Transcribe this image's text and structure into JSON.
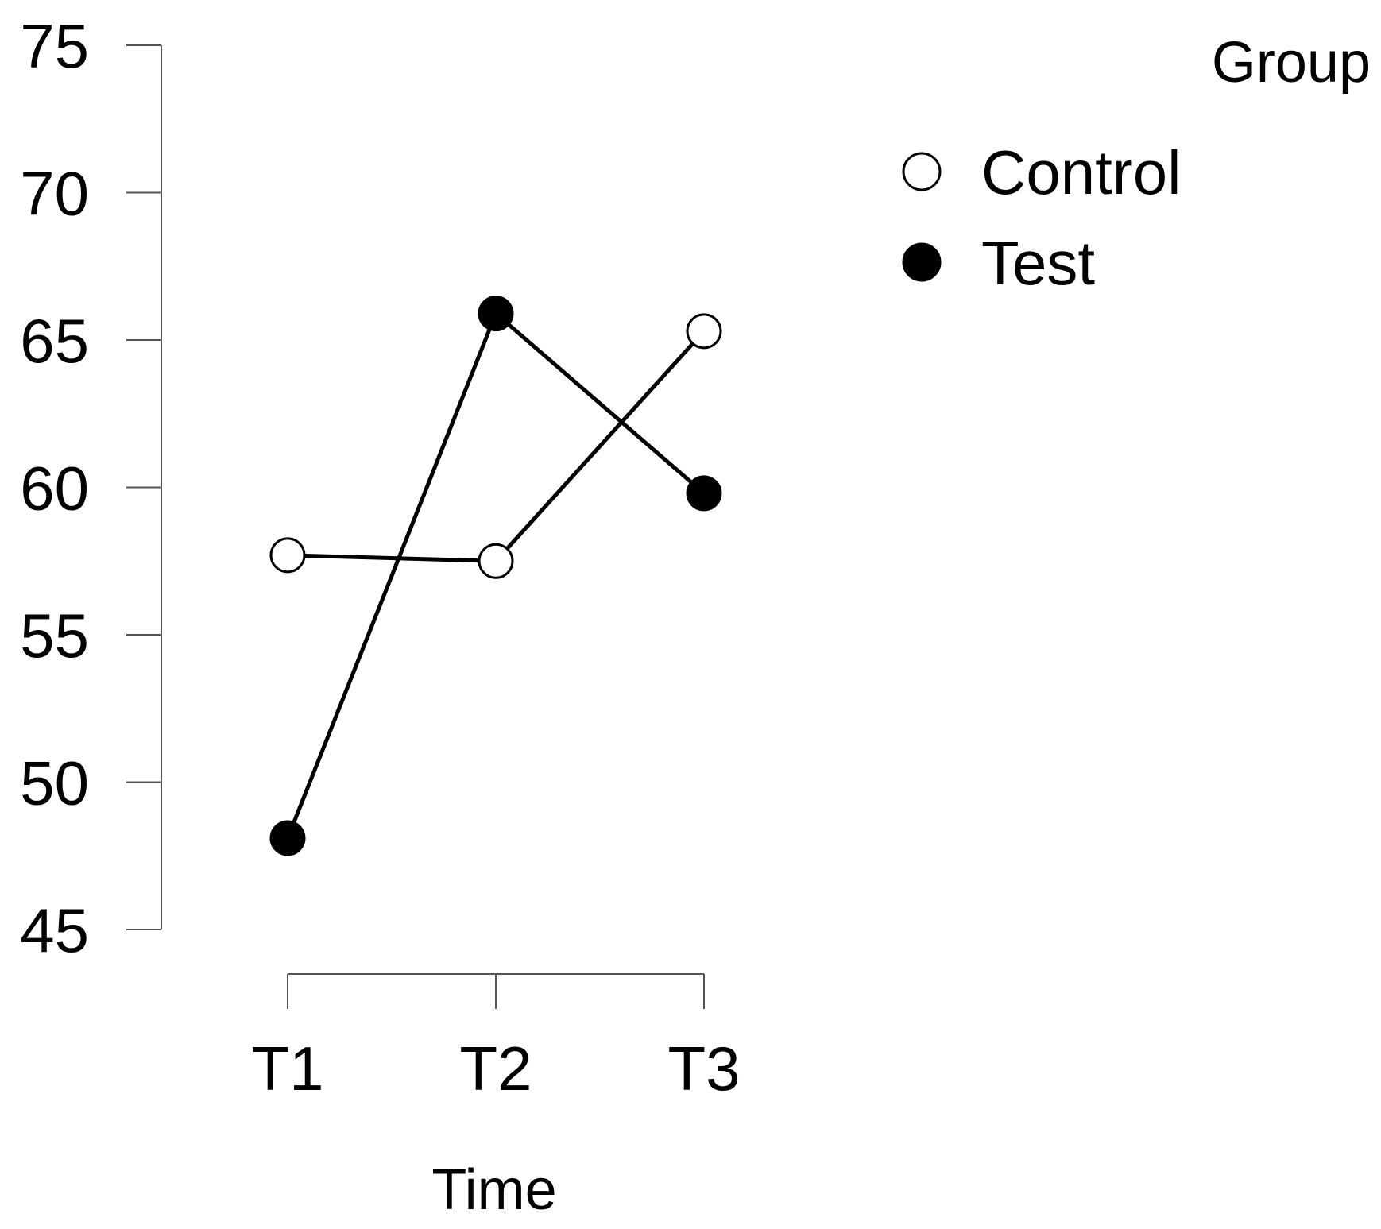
{
  "chart_data": {
    "type": "line",
    "x": [
      "T1",
      "T2",
      "T3"
    ],
    "xlabel": "Time",
    "ylabel": "",
    "ylim": [
      45,
      75
    ],
    "yticks": [
      45,
      50,
      55,
      60,
      65,
      70,
      75
    ],
    "grid": false,
    "legend": {
      "title": "Group",
      "position": "top-right"
    },
    "series": [
      {
        "name": "Control",
        "values": [
          57.7,
          57.5,
          65.3
        ],
        "marker": "open-circle",
        "color": "#000000",
        "fill": "#ffffff"
      },
      {
        "name": "Test",
        "values": [
          48.1,
          65.9,
          59.8
        ],
        "marker": "filled-circle",
        "color": "#000000",
        "fill": "#000000"
      }
    ]
  }
}
